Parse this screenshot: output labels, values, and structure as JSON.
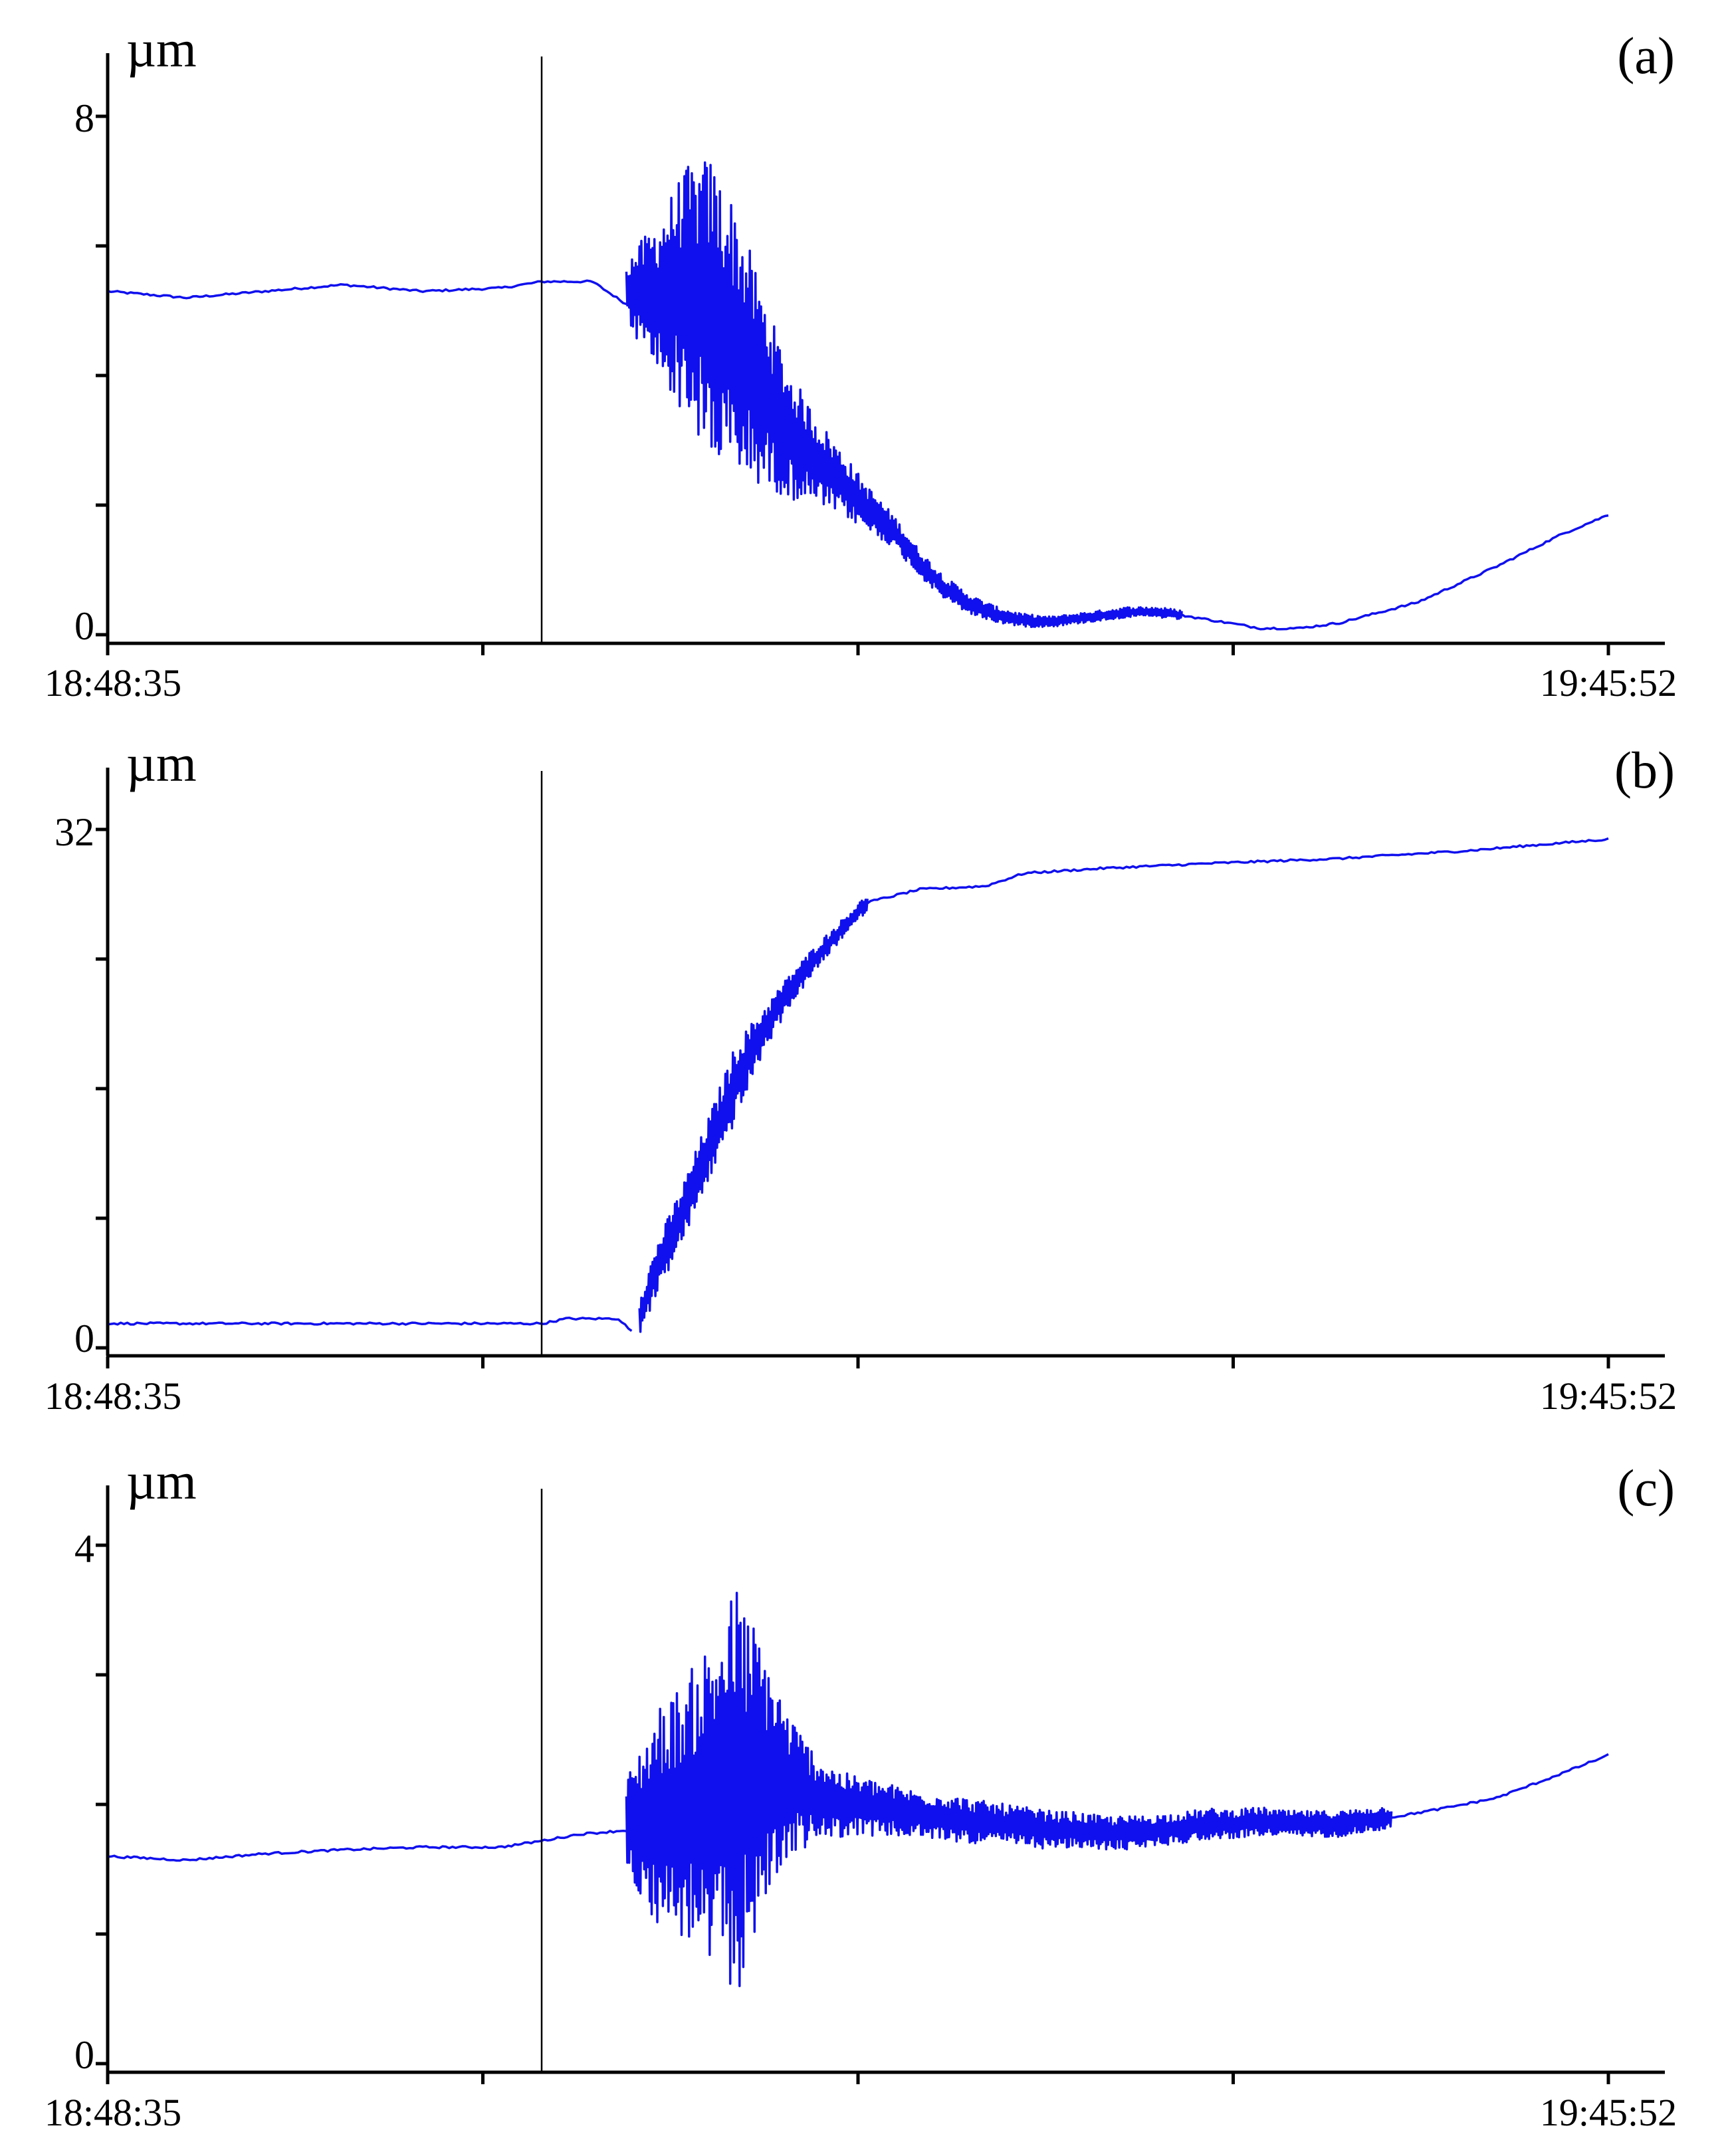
{
  "colors": {
    "series": "#1010ee",
    "axes": "#000000",
    "background": "#ffffff"
  },
  "chart_data": [
    {
      "type": "line",
      "panel_label": "(a)",
      "ylabel": "µm",
      "xlabel": "",
      "ylim": [
        0,
        8
      ],
      "yticks_labeled": [
        "0",
        "8"
      ],
      "xticks_labeled": [
        "18:48:35",
        "19:45:52"
      ],
      "x_unit": "minutes after 18:48:35",
      "xlim": [
        0,
        57.28
      ],
      "event_marker_x": 16.6,
      "grid": false,
      "series": [
        {
          "x": [
            0,
            3,
            6,
            9,
            12,
            15,
            16.6,
            18.5,
            19.8
          ],
          "y": [
            5.3,
            5.2,
            5.3,
            5.4,
            5.3,
            5.35,
            5.45,
            5.45,
            5.1
          ]
        },
        {
          "burst": true,
          "x": [
            19.8,
            21.0,
            22.0,
            23.0,
            24.0,
            25.0,
            26.0,
            27.0,
            28.0,
            29.0,
            30.0,
            31.0,
            32.0,
            33.0,
            34.0,
            35.0,
            36.0,
            37.0,
            38.0,
            39.0,
            40.0,
            41.0
          ],
          "y": [
            5.3,
            5.2,
            5.3,
            5.0,
            4.5,
            3.8,
            3.1,
            2.7,
            2.35,
            1.95,
            1.6,
            1.1,
            0.7,
            0.45,
            0.3,
            0.22,
            0.2,
            0.25,
            0.3,
            0.35,
            0.35,
            0.3
          ],
          "amp": [
            0.5,
            1.2,
            1.9,
            2.4,
            2.1,
            1.5,
            1.0,
            0.7,
            0.5,
            0.35,
            0.25,
            0.2,
            0.18,
            0.15,
            0.12,
            0.1,
            0.08,
            0.08,
            0.08,
            0.08,
            0.08,
            0.08
          ]
        },
        {
          "x": [
            41.0,
            42.5,
            44.0,
            45.5,
            47.0,
            50.0,
            53.0,
            55.5,
            57.28
          ],
          "y": [
            0.3,
            0.2,
            0.1,
            0.1,
            0.18,
            0.5,
            1.05,
            1.55,
            1.85
          ]
        }
      ]
    },
    {
      "type": "line",
      "panel_label": "(b)",
      "ylabel": "µm",
      "xlabel": "",
      "ylim": [
        0,
        32
      ],
      "yticks_labeled": [
        "0",
        "32"
      ],
      "xticks_labeled": [
        "18:48:35",
        "19:45:52"
      ],
      "x_unit": "minutes after 18:48:35",
      "xlim": [
        0,
        57.28
      ],
      "event_marker_x": 16.6,
      "grid": false,
      "series": [
        {
          "x": [
            0,
            5,
            10,
            16.6,
            17.5,
            19.5,
            20.0
          ],
          "y": [
            1.5,
            1.5,
            1.5,
            1.5,
            1.8,
            1.8,
            1.0
          ]
        },
        {
          "burst": true,
          "x": [
            20.3,
            21.0,
            22.0,
            23.0,
            24.0,
            25.0,
            26.0,
            27.0,
            28.0,
            29.0
          ],
          "y": [
            2.0,
            5.0,
            8.5,
            12.5,
            16.5,
            19.5,
            22.0,
            24.0,
            25.8,
            27.5
          ],
          "amp": [
            1.2,
            1.6,
            1.8,
            2.0,
            2.4,
            1.4,
            1.0,
            0.8,
            0.6,
            0.5
          ]
        },
        {
          "x": [
            29.0,
            31.0,
            33.5,
            35.0,
            38.0,
            42.0,
            47.0,
            52.0,
            55.0,
            57.28
          ],
          "y": [
            27.5,
            28.3,
            28.5,
            29.3,
            29.6,
            29.9,
            30.2,
            30.7,
            31.1,
            31.4
          ]
        }
      ]
    },
    {
      "type": "line",
      "panel_label": "(c)",
      "ylabel": "µm",
      "xlabel": "",
      "ylim": [
        0,
        4
      ],
      "yticks_labeled": [
        "0",
        "4"
      ],
      "xticks_labeled": [
        "18:48:35",
        "19:45:52"
      ],
      "x_unit": "minutes after 18:48:35",
      "xlim": [
        0,
        57.28
      ],
      "event_marker_x": 16.6,
      "grid": false,
      "series": [
        {
          "x": [
            0,
            3,
            6,
            9,
            12,
            15,
            16.6,
            18.0,
            19.8
          ],
          "y": [
            1.6,
            1.57,
            1.62,
            1.65,
            1.67,
            1.67,
            1.72,
            1.77,
            1.8
          ]
        },
        {
          "burst": true,
          "x": [
            19.8,
            21.0,
            22.0,
            23.0,
            24.0,
            25.0,
            26.0,
            27.0,
            28.0,
            29.0,
            30.0,
            31.0,
            32.0,
            33.0,
            34.0,
            35.0,
            36.0,
            37.0,
            38.0,
            39.0,
            40.0,
            41.0,
            42.0,
            43.0,
            44.0,
            45.0,
            46.0,
            47.0,
            48.0,
            49.0
          ],
          "y": [
            1.85,
            1.9,
            1.95,
            2.0,
            2.1,
            2.2,
            2.15,
            2.05,
            2.0,
            1.98,
            1.95,
            1.92,
            1.9,
            1.87,
            1.85,
            1.83,
            1.8,
            1.8,
            1.78,
            1.78,
            1.8,
            1.82,
            1.85,
            1.85,
            1.87,
            1.85,
            1.85,
            1.85,
            1.88,
            1.9
          ],
          "amp": [
            0.35,
            0.85,
            1.0,
            1.3,
            1.6,
            1.05,
            0.55,
            0.35,
            0.25,
            0.22,
            0.2,
            0.18,
            0.18,
            0.17,
            0.16,
            0.15,
            0.15,
            0.14,
            0.13,
            0.13,
            0.12,
            0.12,
            0.12,
            0.11,
            0.11,
            0.1,
            0.1,
            0.1,
            0.09,
            0.09
          ]
        },
        {
          "x": [
            49.0,
            51.0,
            53.0,
            55.0,
            57.28
          ],
          "y": [
            1.9,
            1.97,
            2.05,
            2.2,
            2.38
          ]
        }
      ]
    }
  ]
}
